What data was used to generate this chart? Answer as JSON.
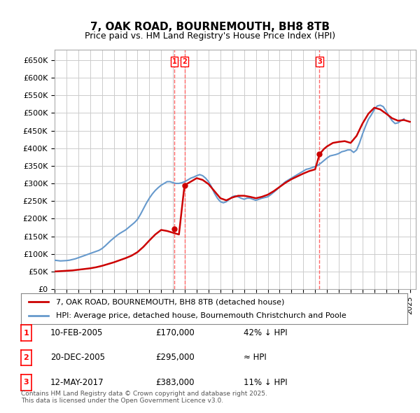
{
  "title": "7, OAK ROAD, BOURNEMOUTH, BH8 8TB",
  "subtitle": "Price paid vs. HM Land Registry's House Price Index (HPI)",
  "ylabel": "",
  "ylim": [
    0,
    680000
  ],
  "yticks": [
    0,
    50000,
    100000,
    150000,
    200000,
    250000,
    300000,
    350000,
    400000,
    450000,
    500000,
    550000,
    600000,
    650000
  ],
  "xlim_start": 1995.0,
  "xlim_end": 2025.5,
  "background_color": "#ffffff",
  "grid_color": "#cccccc",
  "hpi_color": "#6699cc",
  "price_color": "#cc0000",
  "sale_marker_color": "#cc0000",
  "sale_vline_color": "#ff6666",
  "legend_label_red": "7, OAK ROAD, BOURNEMOUTH, BH8 8TB (detached house)",
  "legend_label_blue": "HPI: Average price, detached house, Bournemouth Christchurch and Poole",
  "sales": [
    {
      "num": 1,
      "date": 2005.11,
      "price": 170000,
      "label": "1",
      "text": "10-FEB-2005",
      "price_str": "£170,000",
      "hpi_str": "42% ↓ HPI"
    },
    {
      "num": 2,
      "date": 2005.97,
      "price": 295000,
      "label": "2",
      "text": "20-DEC-2005",
      "price_str": "£295,000",
      "hpi_str": "≈ HPI"
    },
    {
      "num": 3,
      "date": 2017.37,
      "price": 383000,
      "label": "3",
      "text": "12-MAY-2017",
      "price_str": "£383,000",
      "hpi_str": "11% ↓ HPI"
    }
  ],
  "footnote": "Contains HM Land Registry data © Crown copyright and database right 2025.\nThis data is licensed under the Open Government Licence v3.0.",
  "hpi_data_x": [
    1995.0,
    1995.25,
    1995.5,
    1995.75,
    1996.0,
    1996.25,
    1996.5,
    1996.75,
    1997.0,
    1997.25,
    1997.5,
    1997.75,
    1998.0,
    1998.25,
    1998.5,
    1998.75,
    1999.0,
    1999.25,
    1999.5,
    1999.75,
    2000.0,
    2000.25,
    2000.5,
    2000.75,
    2001.0,
    2001.25,
    2001.5,
    2001.75,
    2002.0,
    2002.25,
    2002.5,
    2002.75,
    2003.0,
    2003.25,
    2003.5,
    2003.75,
    2004.0,
    2004.25,
    2004.5,
    2004.75,
    2005.0,
    2005.25,
    2005.5,
    2005.75,
    2006.0,
    2006.25,
    2006.5,
    2006.75,
    2007.0,
    2007.25,
    2007.5,
    2007.75,
    2008.0,
    2008.25,
    2008.5,
    2008.75,
    2009.0,
    2009.25,
    2009.5,
    2009.75,
    2010.0,
    2010.25,
    2010.5,
    2010.75,
    2011.0,
    2011.25,
    2011.5,
    2011.75,
    2012.0,
    2012.25,
    2012.5,
    2012.75,
    2013.0,
    2013.25,
    2013.5,
    2013.75,
    2014.0,
    2014.25,
    2014.5,
    2014.75,
    2015.0,
    2015.25,
    2015.5,
    2015.75,
    2016.0,
    2016.25,
    2016.5,
    2016.75,
    2017.0,
    2017.25,
    2017.5,
    2017.75,
    2018.0,
    2018.25,
    2018.5,
    2018.75,
    2019.0,
    2019.25,
    2019.5,
    2019.75,
    2020.0,
    2020.25,
    2020.5,
    2020.75,
    2021.0,
    2021.25,
    2021.5,
    2021.75,
    2022.0,
    2022.25,
    2022.5,
    2022.75,
    2023.0,
    2023.25,
    2023.5,
    2023.75,
    2024.0,
    2024.25,
    2024.5
  ],
  "hpi_data_y": [
    82000,
    81000,
    80000,
    80500,
    81000,
    82000,
    84000,
    86000,
    89000,
    92000,
    95000,
    98000,
    101000,
    104000,
    107000,
    110000,
    115000,
    122000,
    130000,
    138000,
    145000,
    152000,
    158000,
    163000,
    168000,
    175000,
    182000,
    189000,
    198000,
    212000,
    228000,
    244000,
    258000,
    270000,
    280000,
    288000,
    295000,
    300000,
    305000,
    305000,
    302000,
    300000,
    300000,
    302000,
    305000,
    310000,
    315000,
    318000,
    322000,
    325000,
    322000,
    315000,
    305000,
    290000,
    272000,
    258000,
    248000,
    245000,
    248000,
    255000,
    262000,
    265000,
    262000,
    258000,
    255000,
    258000,
    258000,
    255000,
    252000,
    255000,
    258000,
    260000,
    262000,
    268000,
    275000,
    282000,
    290000,
    298000,
    305000,
    310000,
    315000,
    320000,
    325000,
    330000,
    335000,
    340000,
    342000,
    345000,
    348000,
    352000,
    358000,
    365000,
    372000,
    378000,
    380000,
    382000,
    385000,
    390000,
    392000,
    395000,
    395000,
    388000,
    395000,
    415000,
    440000,
    462000,
    482000,
    495000,
    510000,
    520000,
    522000,
    518000,
    505000,
    490000,
    478000,
    470000,
    472000,
    478000,
    483000
  ],
  "price_data_x": [
    1995.0,
    1995.5,
    1996.0,
    1996.5,
    1997.0,
    1997.5,
    1998.0,
    1998.5,
    1999.0,
    1999.5,
    2000.0,
    2000.5,
    2001.0,
    2001.5,
    2002.0,
    2002.5,
    2003.0,
    2003.5,
    2004.0,
    2004.5,
    2005.0,
    2005.5,
    2005.97,
    2006.5,
    2007.0,
    2007.5,
    2008.0,
    2008.5,
    2009.0,
    2009.5,
    2010.0,
    2010.5,
    2011.0,
    2011.5,
    2012.0,
    2012.5,
    2013.0,
    2013.5,
    2014.0,
    2014.5,
    2015.0,
    2015.5,
    2016.0,
    2016.5,
    2017.0,
    2017.37,
    2017.75,
    2018.0,
    2018.5,
    2019.0,
    2019.5,
    2020.0,
    2020.5,
    2021.0,
    2021.5,
    2022.0,
    2022.5,
    2023.0,
    2023.5,
    2024.0,
    2024.5,
    2025.0
  ],
  "price_data_y": [
    50000,
    51000,
    52000,
    53000,
    55000,
    57000,
    59000,
    62000,
    66000,
    71000,
    76000,
    82000,
    88000,
    95000,
    105000,
    120000,
    138000,
    155000,
    168000,
    165000,
    160000,
    155000,
    295000,
    305000,
    315000,
    310000,
    298000,
    278000,
    258000,
    252000,
    260000,
    265000,
    265000,
    262000,
    258000,
    262000,
    268000,
    278000,
    290000,
    302000,
    312000,
    320000,
    328000,
    335000,
    340000,
    383000,
    398000,
    405000,
    415000,
    418000,
    420000,
    415000,
    435000,
    470000,
    498000,
    515000,
    510000,
    498000,
    485000,
    478000,
    480000,
    475000
  ]
}
